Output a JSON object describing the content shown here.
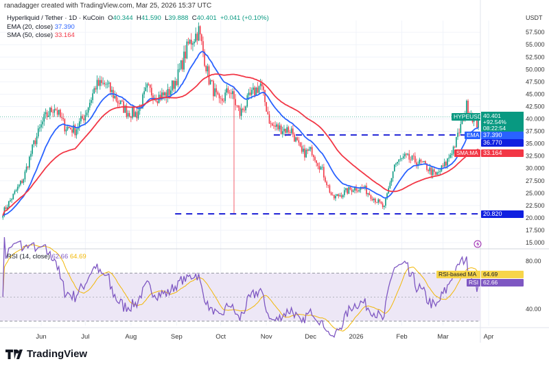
{
  "header": {
    "credit": "ranadagger created with TradingView.com, Mar 25, 2026 15:37 UTC",
    "currency": "USDT"
  },
  "legend": {
    "symbol": "Hyperliquid / Tether · 1D · KuCoin",
    "o_label": "O",
    "o": "40.344",
    "h_label": "H",
    "h": "41.590",
    "l_label": "L",
    "l": "39.888",
    "c_label": "C",
    "c": "40.401",
    "change": "+0.041 (+0.10%)",
    "ema_label": "EMA (20, close)",
    "ema": "37.390",
    "sma_label": "SMA (50, close)",
    "sma": "33.164",
    "rsi_label": "RSI (14, close)",
    "rsi": "62.66",
    "rsi_ma": "64.69"
  },
  "tags": {
    "symbol": "HYPEUSDT",
    "price": "40.401",
    "pct": "+92.54%",
    "countdown": "08:22:54",
    "ema_label": "EMA",
    "ema": "37.390",
    "support_upper": "36.770",
    "sma_label": "SMA:MA",
    "sma": "33.164",
    "support_lower": "20.820",
    "rsi_ma_label": "RSI-based MA",
    "rsi_ma": "64.69",
    "rsi_label": "RSI",
    "rsi": "62.66"
  },
  "colors": {
    "up": "#089981",
    "down": "#f23645",
    "ema": "#2962ff",
    "sma": "#f23645",
    "level": "#1e22d6",
    "rsi": "#7e57c2",
    "rsi_ma": "#f2b705",
    "rsi_band": "#ede7f6"
  },
  "footer": {
    "brand": "TradingView"
  },
  "chart_data": {
    "type": "candlestick",
    "symbol": "HYPEUSDT",
    "timeframe": "1D",
    "price_axis": {
      "ticks": [
        "57.500",
        "55.000",
        "52.500",
        "50.000",
        "47.500",
        "45.000",
        "42.500",
        "40.000",
        "37.500",
        "35.000",
        "32.500",
        "30.000",
        "27.500",
        "25.000",
        "22.500",
        "20.000",
        "17.500",
        "15.000"
      ],
      "range": [
        13.5,
        60
      ]
    },
    "time_axis": [
      [
        "Jun",
        "2025-06-01"
      ],
      [
        "Jul",
        "2025-07-01"
      ],
      [
        "Aug",
        "2025-08-01"
      ],
      [
        "Sep",
        "2025-09-01"
      ],
      [
        "Oct",
        "2025-10-01"
      ],
      [
        "Nov",
        "2025-11-01"
      ],
      [
        "Dec",
        "2025-12-01"
      ],
      [
        "2026",
        "2026-01-01"
      ],
      [
        "Feb",
        "2026-02-01"
      ],
      [
        "Mar",
        "2026-03-01"
      ],
      [
        "Apr",
        "2026-04-01"
      ]
    ],
    "approx_weekly_closes": [
      [
        "2025-05-06",
        21.1
      ],
      [
        "2025-05-13",
        24.5
      ],
      [
        "2025-05-20",
        28
      ],
      [
        "2025-05-27",
        35
      ],
      [
        "2025-06-03",
        40
      ],
      [
        "2025-06-10",
        42.5
      ],
      [
        "2025-06-17",
        38.5
      ],
      [
        "2025-06-24",
        37.7
      ],
      [
        "2025-07-01",
        41
      ],
      [
        "2025-07-08",
        46.7
      ],
      [
        "2025-07-15",
        47
      ],
      [
        "2025-07-22",
        44
      ],
      [
        "2025-07-29",
        41.5
      ],
      [
        "2025-08-05",
        41
      ],
      [
        "2025-08-12",
        46
      ],
      [
        "2025-08-19",
        44.5
      ],
      [
        "2025-08-26",
        45
      ],
      [
        "2025-09-02",
        48.8
      ],
      [
        "2025-09-09",
        55
      ],
      [
        "2025-09-16",
        57.8
      ],
      [
        "2025-09-23",
        48
      ],
      [
        "2025-09-30",
        43
      ],
      [
        "2025-10-07",
        46
      ],
      [
        "2025-10-14",
        41
      ],
      [
        "2025-10-21",
        44.5
      ],
      [
        "2025-10-28",
        47
      ],
      [
        "2025-11-04",
        38.7
      ],
      [
        "2025-11-11",
        38
      ],
      [
        "2025-11-18",
        37.7
      ],
      [
        "2025-11-25",
        33
      ],
      [
        "2025-12-02",
        33.6
      ],
      [
        "2025-12-09",
        29.5
      ],
      [
        "2025-12-16",
        23.9
      ],
      [
        "2025-12-23",
        25
      ],
      [
        "2025-12-30",
        26
      ],
      [
        "2026-01-06",
        26
      ],
      [
        "2026-01-13",
        24
      ],
      [
        "2026-01-20",
        22
      ],
      [
        "2026-01-27",
        30.8
      ],
      [
        "2026-02-03",
        32.2
      ],
      [
        "2026-02-10",
        31.5
      ],
      [
        "2026-02-17",
        30.5
      ],
      [
        "2026-02-24",
        28.5
      ],
      [
        "2026-03-03",
        31
      ],
      [
        "2026-03-10",
        35.5
      ],
      [
        "2026-03-17",
        42.6
      ],
      [
        "2026-03-24",
        39
      ],
      [
        "2026-03-25",
        40.401
      ]
    ],
    "levels": [
      {
        "value": 36.77,
        "from": "2025-11-06"
      },
      {
        "value": 20.82,
        "from": "2025-08-31"
      }
    ],
    "indicators": {
      "ema": {
        "period": 20,
        "last": 37.39
      },
      "sma": {
        "period": 50,
        "last": 33.164
      },
      "rsi": {
        "period": 14,
        "last": 62.66,
        "ma_last": 64.69,
        "ticks": [
          "80.00",
          "40.00"
        ],
        "bands": [
          30,
          70
        ]
      }
    }
  }
}
